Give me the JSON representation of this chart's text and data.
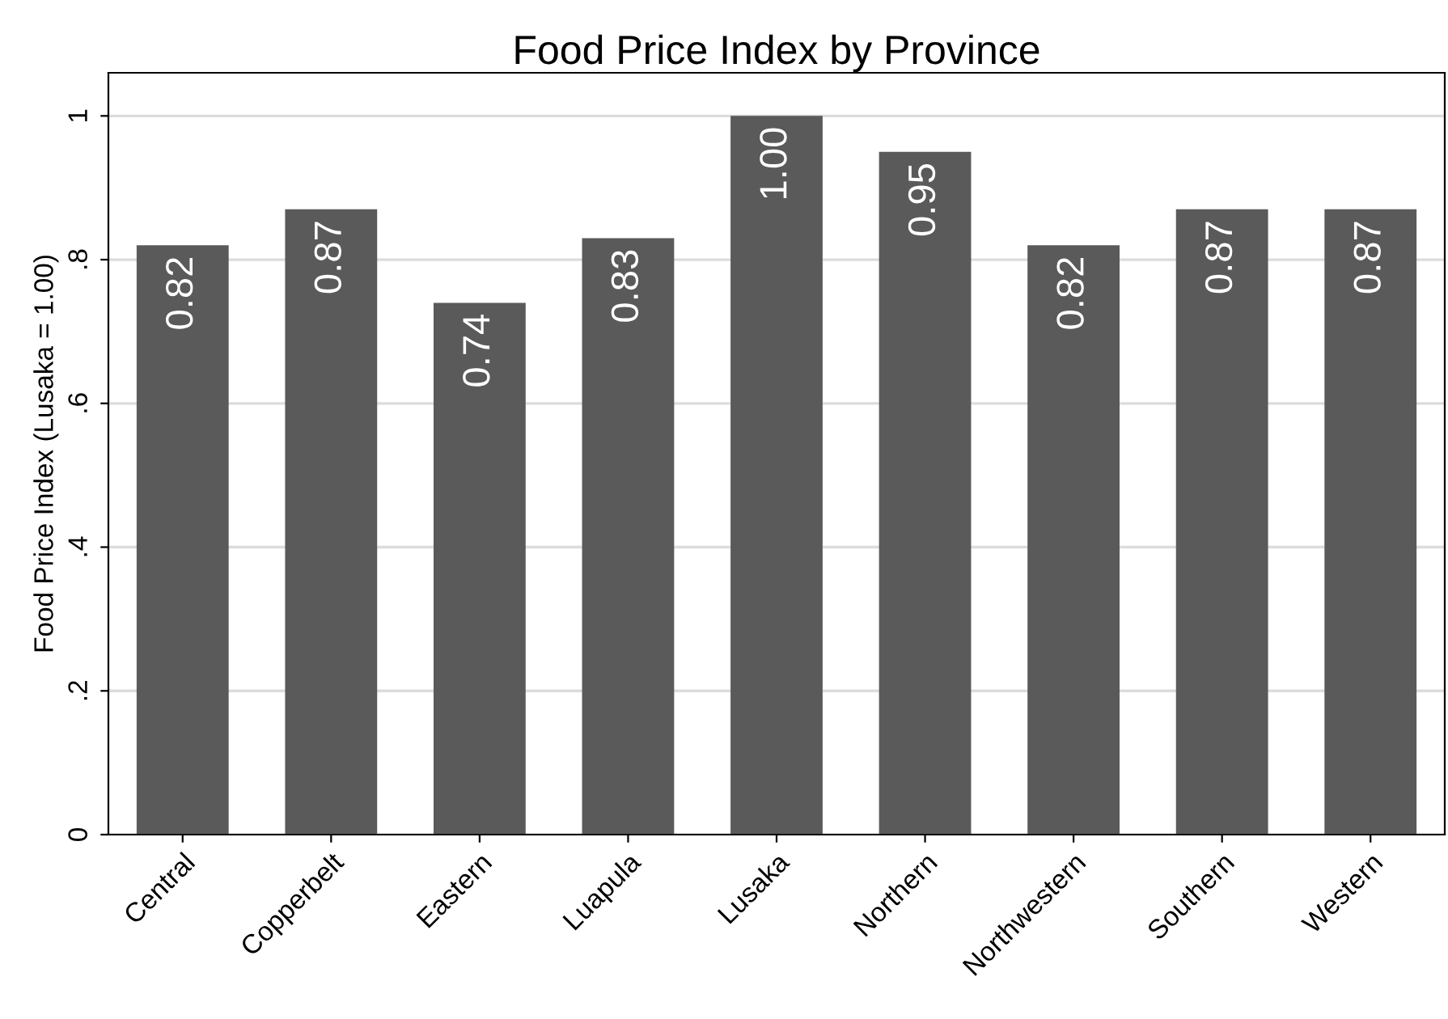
{
  "chart_data": {
    "type": "bar",
    "title": "Food Price Index by Province",
    "ylabel": "Food Price Index (Lusaka = 1.00)",
    "categories": [
      "Central",
      "Copperbelt",
      "Eastern",
      "Luapula",
      "Lusaka",
      "Northern",
      "Northwestern",
      "Southern",
      "Western"
    ],
    "values": [
      0.82,
      0.87,
      0.74,
      0.83,
      1.0,
      0.95,
      0.82,
      0.87,
      0.87
    ],
    "value_labels": [
      "0.82",
      "0.87",
      "0.74",
      "0.83",
      "1.00",
      "0.95",
      "0.82",
      "0.87",
      "0.87"
    ],
    "color": "#5a5a5a",
    "ylim": [
      0,
      1.06
    ],
    "yticks": [
      0,
      {
        "value": 0.2,
        "label": ".2"
      },
      {
        "value": 0.4,
        "label": ".4"
      },
      {
        "value": 0.6,
        "label": ".6"
      },
      {
        "value": 0.8,
        "label": ".8"
      },
      1
    ],
    "grid": "y"
  }
}
